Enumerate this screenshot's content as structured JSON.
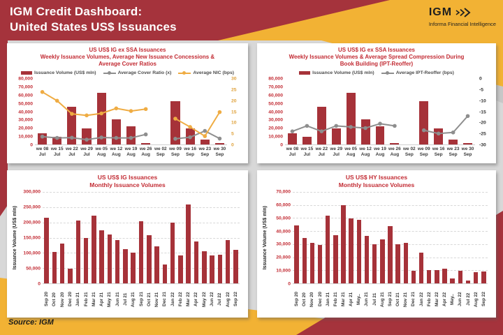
{
  "header": {
    "title_line1": "IGM Credit Dashboard:",
    "title_line2": "United States US$ Issuances",
    "logo": {
      "text": "IGM",
      "subtext": "Informa Financial Intelligence",
      "icon": "triple-chevron-right-icon"
    }
  },
  "source_note": "Source: IGM",
  "colors": {
    "header_red": "#A5333C",
    "accent_gold": "#F2B234",
    "bar_red": "#A63239",
    "title_red": "#C22B33",
    "gold_axis": "#DFA13A",
    "line_gray": "#8E8E8E",
    "line_gold": "#EFAC43",
    "bg_gray": "#D8D8D8"
  },
  "chart_data": [
    {
      "id": "weekly-ig-ex-ssa-concessions-cover",
      "type": "combo-bar-line",
      "title_lines": [
        "US US$ IG ex SSA Issuances",
        "Weekly Issuance Volumes, Average New Issuance Concessions &",
        "Average Cover Ratios"
      ],
      "legend": [
        {
          "label": "Issuance Volume (US$ mln)",
          "swatch": "bar",
          "color": "#A63239"
        },
        {
          "label": "Average Cover Ratio (x)",
          "swatch": "line",
          "color": "#8E8E8E"
        },
        {
          "label": "Average NIC (bps)",
          "swatch": "line",
          "color": "#EFAC43"
        }
      ],
      "categories": [
        [
          "we 08",
          "Jul"
        ],
        [
          "we 15",
          "Jul"
        ],
        [
          "we 22",
          "Jul"
        ],
        [
          "we 29",
          "Jul"
        ],
        [
          "we 05",
          "Aug"
        ],
        [
          "we 12",
          "Aug"
        ],
        [
          "we 19",
          "Aug"
        ],
        [
          "we 26",
          "Aug"
        ],
        [
          "we 02",
          "Sep"
        ],
        [
          "we 09",
          "Sep"
        ],
        [
          "we 16",
          "Sep"
        ],
        [
          "we 23",
          "Sep"
        ],
        [
          "we 30",
          "Sep"
        ]
      ],
      "left_axis": {
        "ticks": [
          "80,000",
          "70,000",
          "60,000",
          "50,000",
          "40,000",
          "30,000",
          "20,000",
          "10,000",
          "0"
        ],
        "min": 0,
        "max": 80000,
        "color": "#C22B33"
      },
      "right_axis": {
        "ticks": [
          "30",
          "25",
          "20",
          "15",
          "10",
          "5",
          "0"
        ],
        "min": 0,
        "max": 30,
        "color": "#DFA13A"
      },
      "bars": [
        13500,
        9500,
        46000,
        19500,
        63000,
        31000,
        22500,
        2000,
        0,
        53000,
        19500,
        6000,
        2000
      ],
      "lines": [
        {
          "name": "Average Cover Ratio (x)",
          "color": "#8E8E8E",
          "axis": "right",
          "values": [
            3.6,
            3,
            3.1,
            2.2,
            3.2,
            3,
            3,
            4.6,
            null,
            2.6,
            3.3,
            6.2,
            2.7
          ]
        },
        {
          "name": "Average NIC (bps)",
          "color": "#EFAC43",
          "axis": "right",
          "values": [
            24,
            20,
            14,
            13.3,
            14.2,
            16.5,
            15.3,
            16.2,
            null,
            11.8,
            8,
            3.8,
            14.8
          ]
        }
      ]
    },
    {
      "id": "weekly-ig-ex-ssa-ipt-reoffer",
      "type": "combo-bar-line",
      "title_lines": [
        "US US$ IG ex SSA Issuances",
        "Weekly Issuance Volumes & Average Spread Compression During",
        "Book Building (IPT-Reoffer)"
      ],
      "legend": [
        {
          "label": "Issuance Volume (US$ mln)",
          "swatch": "bar",
          "color": "#A63239"
        },
        {
          "label": "Average IPT-Reoffer (bps)",
          "swatch": "line",
          "color": "#8E8E8E"
        }
      ],
      "categories": [
        [
          "we 08",
          "Jul"
        ],
        [
          "we 15",
          "Jul"
        ],
        [
          "we 22",
          "Jul"
        ],
        [
          "we 29",
          "Jul"
        ],
        [
          "we 05",
          "Aug"
        ],
        [
          "we 12",
          "Aug"
        ],
        [
          "we 19",
          "Aug"
        ],
        [
          "we 26",
          "Aug"
        ],
        [
          "we 02",
          "Sep"
        ],
        [
          "we 09",
          "Sep"
        ],
        [
          "we 16",
          "Sep"
        ],
        [
          "we 23",
          "Sep"
        ],
        [
          "we 30",
          "Sep"
        ]
      ],
      "left_axis": {
        "ticks": [
          "80,000",
          "70,000",
          "60,000",
          "50,000",
          "40,000",
          "30,000",
          "20,000",
          "10,000",
          "0"
        ],
        "min": 0,
        "max": 80000,
        "color": "#C22B33"
      },
      "right_axis": {
        "ticks": [
          "0",
          "-5",
          "-10",
          "-15",
          "-20",
          "-25",
          "-30"
        ],
        "min": -30,
        "max": 0,
        "color": "#333333"
      },
      "bars": [
        13500,
        9500,
        46000,
        19500,
        63000,
        31000,
        22500,
        2000,
        0,
        53000,
        19500,
        6000,
        2000
      ],
      "lines": [
        {
          "name": "Average IPT-Reoffer (bps)",
          "color": "#8E8E8E",
          "axis": "right",
          "values": [
            -24,
            -21.5,
            -24,
            -21.5,
            -22,
            -22.5,
            -20.5,
            -21.5,
            null,
            -23.5,
            -25,
            -24.5,
            -17
          ]
        }
      ]
    },
    {
      "id": "monthly-ig",
      "type": "bar",
      "title_lines": [
        "US US$ IG Issuances",
        "Monthly Issuance Volumes"
      ],
      "y_label": "Issuance Volume (US$ mln)",
      "categories": [
        "Sep 20",
        "Oct 20",
        "Nov 20",
        "Dec 20",
        "Jan 21",
        "Feb 21",
        "Mar 21",
        "Apr 21",
        "May 21",
        "Jun 21",
        "Jul 21",
        "Aug 21",
        "Sep 21",
        "Oct 21",
        "Nov 21",
        "Dec 21",
        "Jan 22",
        "Feb 22",
        "Mar 22",
        "Apr 22",
        "May 22",
        "Jun 22",
        "Jul 22",
        "Aug 22",
        "Sep 22"
      ],
      "left_axis": {
        "ticks": [
          "300,000",
          "250,000",
          "200,000",
          "150,000",
          "100,000",
          "50,000",
          "0"
        ],
        "min": 0,
        "max": 300000,
        "color": "#C22B33"
      },
      "gridlines": true,
      "x_labels_vertical": true,
      "bars": [
        216000,
        103000,
        130000,
        48000,
        206000,
        150000,
        222000,
        175000,
        161000,
        142000,
        113000,
        100000,
        204000,
        157000,
        121000,
        63000,
        200000,
        91000,
        258000,
        137000,
        105000,
        91000,
        95000,
        142000,
        110000
      ]
    },
    {
      "id": "monthly-hy",
      "type": "bar",
      "title_lines": [
        "US US$ HY Issuances",
        "Monthly Issuance Volumes"
      ],
      "y_label": "Issuance Volume (US$ mln)",
      "categories": [
        "Sep 20",
        "Oct 20",
        "Nov 20",
        "Dec 20",
        "Jan 21",
        "Feb 21",
        "Mar 21",
        "Apr 21",
        "May..",
        "Jun 21",
        "Jul 21",
        "Aug 21",
        "Sep 21",
        "Oct 21",
        "Nov 21",
        "Dec 21",
        "Jan 22",
        "Feb 22",
        "Mar 22",
        "Apr 22",
        "May..",
        "Jun 22",
        "Jul 22",
        "Aug 22",
        "Sep 22"
      ],
      "left_axis": {
        "ticks": [
          "70,000",
          "60,000",
          "50,000",
          "40,000",
          "30,000",
          "20,000",
          "10,000",
          "0"
        ],
        "min": 0,
        "max": 70000,
        "color": "#C22B33"
      },
      "gridlines": true,
      "x_labels_vertical": true,
      "bars": [
        44500,
        34500,
        31000,
        29500,
        52000,
        37000,
        60000,
        49500,
        48500,
        36500,
        29800,
        33500,
        44000,
        30000,
        31000,
        9500,
        23500,
        10000,
        10000,
        11000,
        4000,
        9500,
        2000,
        8500,
        9000
      ]
    }
  ]
}
